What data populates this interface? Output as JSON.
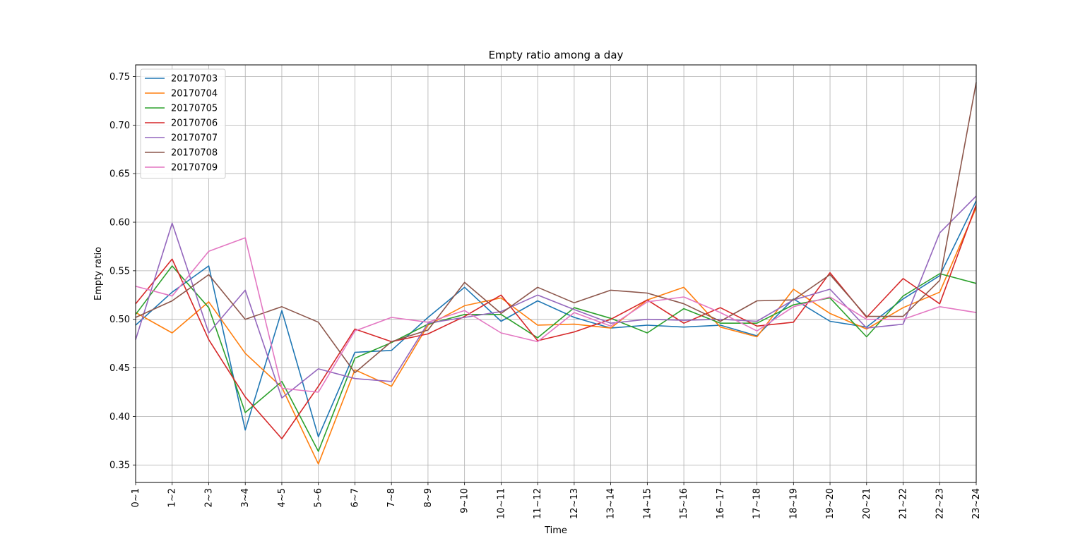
{
  "chart_data": {
    "type": "line",
    "title": "Empty ratio among a day",
    "xlabel": "Time",
    "ylabel": "Empty ratio",
    "ylim": [
      0.332,
      0.762
    ],
    "yticks": [
      "0.35",
      "0.40",
      "0.45",
      "0.50",
      "0.55",
      "0.60",
      "0.65",
      "0.70",
      "0.75"
    ],
    "grid": true,
    "legend_position": "upper-left",
    "categories": [
      "0~1",
      "1~2",
      "2~3",
      "3~4",
      "4~5",
      "5~6",
      "6~7",
      "7~8",
      "8~9",
      "9~10",
      "10~11",
      "11~12",
      "12~13",
      "13~14",
      "14~15",
      "15~16",
      "16~17",
      "17~18",
      "18~19",
      "19~20",
      "20~21",
      "21~22",
      "22~23",
      "23~24"
    ],
    "series": [
      {
        "name": "20170703",
        "color": "#1f77b4",
        "values": [
          0.494,
          0.528,
          0.555,
          0.386,
          0.509,
          0.379,
          0.466,
          0.468,
          0.502,
          0.533,
          0.498,
          0.519,
          0.502,
          0.491,
          0.494,
          0.492,
          0.494,
          0.483,
          0.521,
          0.498,
          0.492,
          0.521,
          0.545,
          0.622
        ]
      },
      {
        "name": "20170704",
        "color": "#ff7f0e",
        "values": [
          0.507,
          0.486,
          0.518,
          0.465,
          0.43,
          0.351,
          0.448,
          0.431,
          0.494,
          0.514,
          0.522,
          0.494,
          0.495,
          0.491,
          0.52,
          0.533,
          0.492,
          0.482,
          0.531,
          0.506,
          0.49,
          0.512,
          0.528,
          0.615
        ]
      },
      {
        "name": "20170705",
        "color": "#2ca02c",
        "values": [
          0.505,
          0.555,
          0.512,
          0.404,
          0.436,
          0.364,
          0.46,
          0.476,
          0.495,
          0.505,
          0.505,
          0.481,
          0.512,
          0.501,
          0.486,
          0.511,
          0.496,
          0.496,
          0.515,
          0.522,
          0.482,
          0.524,
          0.547,
          0.537
        ]
      },
      {
        "name": "20170706",
        "color": "#d62728",
        "values": [
          0.516,
          0.562,
          0.479,
          0.42,
          0.377,
          0.431,
          0.49,
          0.477,
          0.485,
          0.503,
          0.525,
          0.478,
          0.487,
          0.5,
          0.52,
          0.496,
          0.512,
          0.493,
          0.497,
          0.548,
          0.502,
          0.542,
          0.516,
          0.618
        ]
      },
      {
        "name": "20170707",
        "color": "#9467bd",
        "values": [
          0.479,
          0.599,
          0.486,
          0.53,
          0.419,
          0.449,
          0.439,
          0.436,
          0.496,
          0.502,
          0.508,
          0.525,
          0.51,
          0.496,
          0.5,
          0.499,
          0.5,
          0.498,
          0.52,
          0.531,
          0.491,
          0.495,
          0.589,
          0.627
        ]
      },
      {
        "name": "20170708",
        "color": "#8c564b",
        "values": [
          0.502,
          0.519,
          0.546,
          0.5,
          0.513,
          0.497,
          0.445,
          0.477,
          0.489,
          0.538,
          0.506,
          0.533,
          0.517,
          0.53,
          0.527,
          0.516,
          0.498,
          0.519,
          0.52,
          0.546,
          0.503,
          0.503,
          0.54,
          0.744
        ]
      },
      {
        "name": "20170709",
        "color": "#e377c2",
        "values": [
          0.534,
          0.524,
          0.57,
          0.584,
          0.429,
          0.425,
          0.488,
          0.502,
          0.497,
          0.509,
          0.486,
          0.477,
          0.507,
          0.493,
          0.518,
          0.523,
          0.507,
          0.488,
          0.513,
          0.523,
          0.5,
          0.5,
          0.513,
          0.507
        ]
      }
    ]
  }
}
